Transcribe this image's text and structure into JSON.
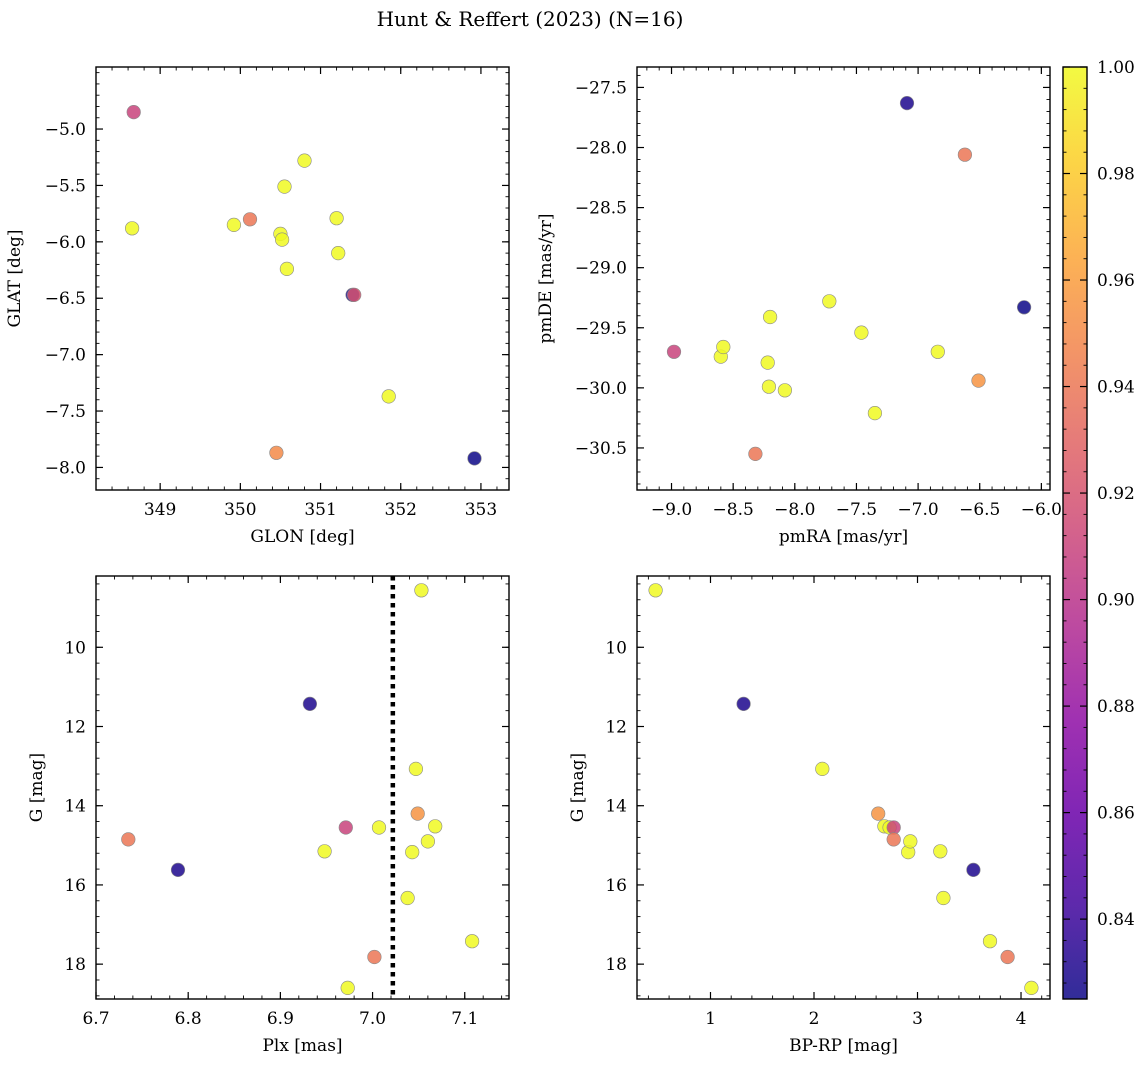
{
  "figure": {
    "title": "Hunt & Reffert (2023) (N=16)"
  },
  "colorbar": {
    "colormap": "plasma",
    "range": [
      0.825,
      1.0
    ],
    "ticks": [
      0.84,
      0.86,
      0.88,
      0.9,
      0.92,
      0.94,
      0.96,
      0.98,
      1.0
    ],
    "tick_labels": [
      "0.84",
      "0.86",
      "0.88",
      "0.90",
      "0.92",
      "0.94",
      "0.96",
      "0.98",
      "1.00"
    ]
  },
  "chart_data": [
    {
      "type": "scatter",
      "xlabel": "GLON [deg]",
      "ylabel": "GLAT [deg]",
      "xlim": [
        348.2,
        353.35
      ],
      "ylim": [
        -8.2,
        -4.45
      ],
      "xticks": [
        349,
        350,
        351,
        352,
        353
      ],
      "xtick_labels": [
        "349",
        "350",
        "351",
        "352",
        "353"
      ],
      "yticks": [
        -5.0,
        -5.5,
        -6.0,
        -6.5,
        -7.0,
        -7.5,
        -8.0
      ],
      "ytick_labels": [
        "−5.0",
        "−5.5",
        "−6.0",
        "−6.5",
        "−7.0",
        "−7.5",
        "−8.0"
      ],
      "points": [
        {
          "x": 348.67,
          "y": -4.85,
          "c": 0.91
        },
        {
          "x": 348.65,
          "y": -5.88,
          "c": 1.0
        },
        {
          "x": 349.92,
          "y": -5.85,
          "c": 1.0
        },
        {
          "x": 350.12,
          "y": -5.8,
          "c": 0.94
        },
        {
          "x": 350.5,
          "y": -5.93,
          "c": 1.0
        },
        {
          "x": 350.52,
          "y": -5.98,
          "c": 1.0
        },
        {
          "x": 350.55,
          "y": -5.51,
          "c": 1.0
        },
        {
          "x": 350.58,
          "y": -6.24,
          "c": 1.0
        },
        {
          "x": 350.8,
          "y": -5.28,
          "c": 1.0
        },
        {
          "x": 351.2,
          "y": -5.79,
          "c": 1.0
        },
        {
          "x": 351.22,
          "y": -6.1,
          "c": 1.0
        },
        {
          "x": 351.4,
          "y": -6.47,
          "c": 0.83
        },
        {
          "x": 351.42,
          "y": -6.47,
          "c": 0.92
        },
        {
          "x": 351.85,
          "y": -7.37,
          "c": 1.0
        },
        {
          "x": 350.45,
          "y": -7.87,
          "c": 0.95
        },
        {
          "x": 352.92,
          "y": -7.92,
          "c": 0.825
        }
      ]
    },
    {
      "type": "scatter",
      "xlabel": "pmRA [mas/yr]",
      "ylabel": "pmDE [mas/yr]",
      "xlim": [
        -9.28,
        -5.93
      ],
      "ylim": [
        -30.85,
        -27.33
      ],
      "xticks": [
        -9.0,
        -8.5,
        -8.0,
        -7.5,
        -7.0,
        -6.5,
        -6.0
      ],
      "xtick_labels": [
        "−9.0",
        "−8.5",
        "−8.0",
        "−7.5",
        "−7.0",
        "−6.5",
        "−6.0"
      ],
      "yticks": [
        -27.5,
        -28.0,
        -28.5,
        -29.0,
        -29.5,
        -30.0,
        -30.5
      ],
      "ytick_labels": [
        "−27.5",
        "−28.0",
        "−28.5",
        "−29.0",
        "−29.5",
        "−30.0",
        "−30.5"
      ],
      "points": [
        {
          "x": -8.98,
          "y": -29.7,
          "c": 0.91
        },
        {
          "x": -8.6,
          "y": -29.74,
          "c": 1.0
        },
        {
          "x": -8.58,
          "y": -29.66,
          "c": 1.0
        },
        {
          "x": -8.32,
          "y": -30.55,
          "c": 0.94
        },
        {
          "x": -8.22,
          "y": -29.79,
          "c": 1.0
        },
        {
          "x": -8.21,
          "y": -29.99,
          "c": 1.0
        },
        {
          "x": -8.2,
          "y": -29.41,
          "c": 1.0
        },
        {
          "x": -8.08,
          "y": -30.02,
          "c": 1.0
        },
        {
          "x": -7.72,
          "y": -29.28,
          "c": 1.0
        },
        {
          "x": -7.46,
          "y": -29.54,
          "c": 1.0
        },
        {
          "x": -7.35,
          "y": -30.21,
          "c": 1.0
        },
        {
          "x": -7.09,
          "y": -27.63,
          "c": 0.83
        },
        {
          "x": -6.84,
          "y": -29.7,
          "c": 1.0
        },
        {
          "x": -6.62,
          "y": -28.06,
          "c": 0.94
        },
        {
          "x": -6.51,
          "y": -29.94,
          "c": 0.955
        },
        {
          "x": -6.14,
          "y": -29.33,
          "c": 0.825
        }
      ]
    },
    {
      "type": "scatter",
      "xlabel": "Plx [mas]",
      "ylabel": "G [mag]",
      "xlim": [
        6.7,
        7.148
      ],
      "ylim": [
        18.88,
        8.2
      ],
      "xticks": [
        6.7,
        6.8,
        6.9,
        7.0,
        7.1
      ],
      "xtick_labels": [
        "6.7",
        "6.8",
        "6.9",
        "7.0",
        "7.1"
      ],
      "yticks": [
        10,
        12,
        14,
        16,
        18
      ],
      "ytick_labels": [
        "10",
        "12",
        "14",
        "16",
        "18"
      ],
      "vline": 7.022,
      "points": [
        {
          "x": 6.735,
          "y": 14.85,
          "c": 0.94
        },
        {
          "x": 6.789,
          "y": 15.62,
          "c": 0.83
        },
        {
          "x": 6.932,
          "y": 11.43,
          "c": 0.83
        },
        {
          "x": 6.948,
          "y": 15.15,
          "c": 1.0
        },
        {
          "x": 6.971,
          "y": 14.55,
          "c": 0.91
        },
        {
          "x": 6.973,
          "y": 18.6,
          "c": 1.0
        },
        {
          "x": 7.002,
          "y": 17.82,
          "c": 0.94
        },
        {
          "x": 7.007,
          "y": 14.55,
          "c": 1.0
        },
        {
          "x": 7.038,
          "y": 16.33,
          "c": 1.0
        },
        {
          "x": 7.043,
          "y": 15.17,
          "c": 1.0
        },
        {
          "x": 7.047,
          "y": 13.07,
          "c": 1.0
        },
        {
          "x": 7.049,
          "y": 14.2,
          "c": 0.955
        },
        {
          "x": 7.053,
          "y": 8.56,
          "c": 1.0
        },
        {
          "x": 7.06,
          "y": 14.9,
          "c": 1.0
        },
        {
          "x": 7.068,
          "y": 14.52,
          "c": 1.0
        },
        {
          "x": 7.108,
          "y": 17.42,
          "c": 1.0
        }
      ]
    },
    {
      "type": "scatter",
      "xlabel": "BP-RP [mag]",
      "ylabel": "G [mag]",
      "xlim": [
        0.29,
        4.28
      ],
      "ylim": [
        18.88,
        8.2
      ],
      "xticks": [
        1,
        2,
        3,
        4
      ],
      "xtick_labels": [
        "1",
        "2",
        "3",
        "4"
      ],
      "yticks": [
        10,
        12,
        14,
        16,
        18
      ],
      "ytick_labels": [
        "10",
        "12",
        "14",
        "16",
        "18"
      ],
      "points": [
        {
          "x": 0.47,
          "y": 8.56,
          "c": 1.0
        },
        {
          "x": 1.32,
          "y": 11.43,
          "c": 0.83
        },
        {
          "x": 2.08,
          "y": 13.07,
          "c": 1.0
        },
        {
          "x": 2.62,
          "y": 14.2,
          "c": 0.955
        },
        {
          "x": 2.68,
          "y": 14.52,
          "c": 1.0
        },
        {
          "x": 2.73,
          "y": 14.55,
          "c": 1.0
        },
        {
          "x": 2.77,
          "y": 14.55,
          "c": 0.91
        },
        {
          "x": 2.77,
          "y": 14.85,
          "c": 0.94
        },
        {
          "x": 2.91,
          "y": 15.17,
          "c": 1.0
        },
        {
          "x": 2.93,
          "y": 14.9,
          "c": 1.0
        },
        {
          "x": 3.22,
          "y": 15.15,
          "c": 1.0
        },
        {
          "x": 3.25,
          "y": 16.33,
          "c": 1.0
        },
        {
          "x": 3.54,
          "y": 15.62,
          "c": 0.83
        },
        {
          "x": 3.7,
          "y": 17.42,
          "c": 1.0
        },
        {
          "x": 3.87,
          "y": 17.82,
          "c": 0.94
        },
        {
          "x": 4.1,
          "y": 18.6,
          "c": 1.0
        }
      ]
    }
  ]
}
